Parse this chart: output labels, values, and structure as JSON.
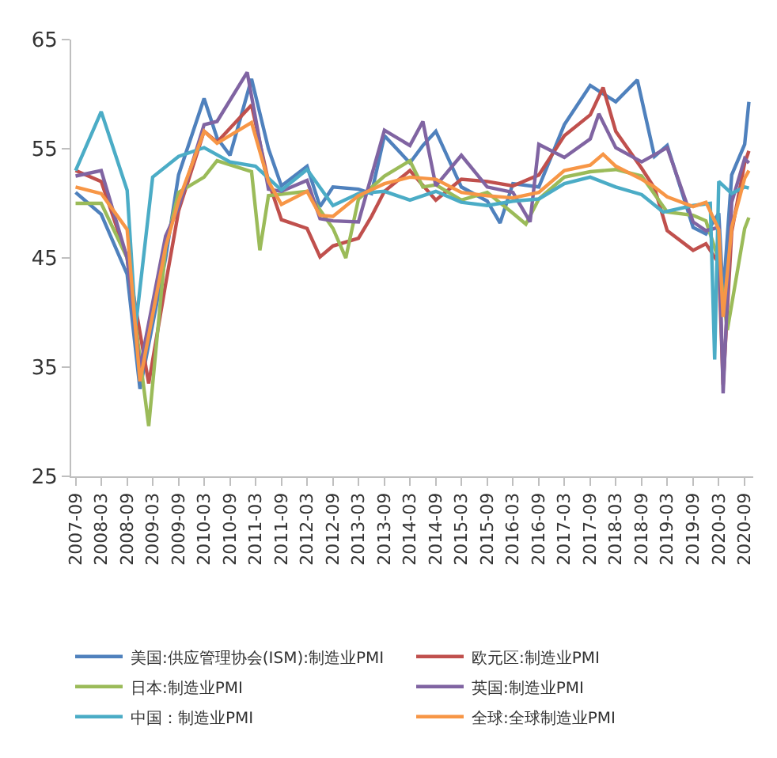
{
  "chart_data": {
    "type": "line",
    "ylim": [
      25,
      65
    ],
    "yticks": [
      25,
      35,
      45,
      55,
      65
    ],
    "xlim": [
      "2007-08",
      "2020-11"
    ],
    "xticks": [
      "2007-09",
      "2008-03",
      "2008-09",
      "2009-03",
      "2009-09",
      "2010-03",
      "2010-09",
      "2011-03",
      "2011-09",
      "2012-03",
      "2012-09",
      "2013-03",
      "2013-09",
      "2014-03",
      "2014-09",
      "2015-03",
      "2015-09",
      "2016-03",
      "2016-09",
      "2017-03",
      "2017-09",
      "2018-03",
      "2018-09",
      "2019-03",
      "2019-09",
      "2020-03",
      "2020-09"
    ],
    "grid": false,
    "legend": "bottom",
    "marker": "none",
    "line_style": "solid",
    "series": [
      {
        "name": "美国:供应管理协会(ISM):制造业PMI",
        "color": "#4f81bd",
        "x": [
          "2007-09",
          "2008-03",
          "2008-09",
          "2008-12",
          "2009-06",
          "2009-09",
          "2010-03",
          "2010-06",
          "2010-09",
          "2011-02",
          "2011-06",
          "2011-09",
          "2012-03",
          "2012-06",
          "2012-09",
          "2013-03",
          "2013-06",
          "2013-09",
          "2014-03",
          "2014-06",
          "2014-09",
          "2015-03",
          "2015-09",
          "2015-12",
          "2016-03",
          "2016-09",
          "2017-03",
          "2017-09",
          "2018-03",
          "2018-08",
          "2018-12",
          "2019-03",
          "2019-09",
          "2019-12",
          "2020-03",
          "2020-04",
          "2020-06",
          "2020-09",
          "2020-10"
        ],
        "values": [
          51,
          49,
          43.5,
          33,
          45,
          52.6,
          59.6,
          56,
          54.4,
          61.4,
          55,
          51.6,
          53.4,
          49.7,
          51.5,
          51.3,
          50.9,
          56.2,
          53.7,
          55.3,
          56.6,
          51.5,
          50.2,
          48.2,
          51.8,
          51.5,
          57.2,
          60.8,
          59.3,
          61.3,
          54.3,
          55.3,
          47.8,
          47.2,
          49.1,
          41.5,
          52.6,
          55.4,
          59.3
        ]
      },
      {
        "name": "欧元区:制造业PMI",
        "color": "#c0504d",
        "x": [
          "2007-09",
          "2008-03",
          "2008-09",
          "2009-02",
          "2009-06",
          "2009-09",
          "2010-03",
          "2010-06",
          "2011-02",
          "2011-06",
          "2011-09",
          "2012-03",
          "2012-06",
          "2012-09",
          "2013-03",
          "2013-06",
          "2013-09",
          "2014-03",
          "2014-09",
          "2015-03",
          "2015-09",
          "2016-03",
          "2016-09",
          "2017-03",
          "2017-09",
          "2017-12",
          "2018-03",
          "2018-09",
          "2018-12",
          "2019-03",
          "2019-09",
          "2019-12",
          "2020-03",
          "2020-04",
          "2020-06",
          "2020-09",
          "2020-10"
        ],
        "values": [
          53,
          52,
          45,
          33.5,
          42.6,
          49.3,
          56.6,
          55.6,
          59,
          52,
          48.5,
          47.7,
          45.1,
          46.1,
          46.8,
          48.8,
          51.1,
          53,
          50.3,
          52.2,
          52,
          51.6,
          52.6,
          56.2,
          58.1,
          60.6,
          56.6,
          53.2,
          51.4,
          47.5,
          45.7,
          46.3,
          44.5,
          33.4,
          47.4,
          53.7,
          54.8
        ]
      },
      {
        "name": "日本:制造业PMI",
        "color": "#9bbb59",
        "x": [
          "2007-09",
          "2008-03",
          "2008-09",
          "2009-02",
          "2009-06",
          "2009-09",
          "2010-03",
          "2010-06",
          "2011-02",
          "2011-04",
          "2011-06",
          "2012-03",
          "2012-09",
          "2012-12",
          "2013-03",
          "2013-09",
          "2014-03",
          "2014-06",
          "2014-09",
          "2015-03",
          "2015-09",
          "2016-03",
          "2016-06",
          "2016-09",
          "2017-03",
          "2017-09",
          "2018-03",
          "2018-09",
          "2019-03",
          "2019-09",
          "2019-12",
          "2020-03",
          "2020-05",
          "2020-09",
          "2020-10"
        ],
        "values": [
          50,
          50,
          45,
          29.6,
          46,
          51,
          52.4,
          53.9,
          52.9,
          45.7,
          50.7,
          51.1,
          47.7,
          45,
          50.4,
          52.5,
          53.9,
          51.5,
          51.7,
          50.3,
          51,
          49.1,
          48.1,
          50.4,
          52.4,
          52.9,
          53.1,
          52.5,
          49.2,
          48.9,
          48.4,
          44.8,
          38.4,
          47.7,
          48.7
        ]
      },
      {
        "name": "英国:制造业PMI",
        "color": "#8064a2",
        "x": [
          "2007-09",
          "2008-03",
          "2008-09",
          "2008-12",
          "2009-06",
          "2009-09",
          "2010-03",
          "2010-06",
          "2011-01",
          "2011-06",
          "2011-09",
          "2012-03",
          "2012-06",
          "2012-09",
          "2013-03",
          "2013-06",
          "2013-09",
          "2014-03",
          "2014-06",
          "2014-09",
          "2015-03",
          "2015-09",
          "2016-03",
          "2016-07",
          "2016-09",
          "2017-03",
          "2017-09",
          "2017-11",
          "2018-03",
          "2018-09",
          "2019-03",
          "2019-09",
          "2019-12",
          "2020-03",
          "2020-04",
          "2020-06",
          "2020-09",
          "2020-10"
        ],
        "values": [
          52.5,
          53,
          45,
          34.9,
          47,
          49.6,
          57.2,
          57.5,
          62,
          51.3,
          51.1,
          52.1,
          48.6,
          48.4,
          48.3,
          52.5,
          56.7,
          55.3,
          57.5,
          51.6,
          54.4,
          51.5,
          51,
          48.3,
          55.4,
          54.2,
          55.9,
          58.2,
          55.1,
          53.8,
          55.1,
          48.3,
          47.5,
          47.8,
          32.6,
          50.1,
          54.1,
          53.7
        ]
      },
      {
        "name": "中国：制造业PMI",
        "color": "#4bacc6",
        "x": [
          "2007-09",
          "2008-03",
          "2008-09",
          "2008-11",
          "2009-03",
          "2009-09",
          "2010-03",
          "2010-09",
          "2011-03",
          "2011-09",
          "2012-03",
          "2012-09",
          "2013-03",
          "2013-09",
          "2014-03",
          "2014-09",
          "2015-03",
          "2015-09",
          "2016-03",
          "2016-09",
          "2017-03",
          "2017-09",
          "2018-03",
          "2018-09",
          "2019-02",
          "2019-09",
          "2020-01",
          "2020-02",
          "2020-03",
          "2020-06",
          "2020-09",
          "2020-10"
        ],
        "values": [
          53,
          58.4,
          51.2,
          38.8,
          52.4,
          54.3,
          55.1,
          53.8,
          53.4,
          51.2,
          53.1,
          49.8,
          50.9,
          51.1,
          50.3,
          51.1,
          50.1,
          49.8,
          50.2,
          50.4,
          51.8,
          52.4,
          51.5,
          50.8,
          49.2,
          49.8,
          50,
          35.7,
          52,
          50.9,
          51.5,
          51.4
        ]
      },
      {
        "name": "全球:全球制造业PMI",
        "color": "#f79646",
        "x": [
          "2007-09",
          "2008-03",
          "2008-09",
          "2008-12",
          "2009-06",
          "2009-09",
          "2010-03",
          "2010-06",
          "2011-02",
          "2011-06",
          "2011-09",
          "2012-03",
          "2012-06",
          "2012-09",
          "2013-03",
          "2013-09",
          "2014-03",
          "2014-09",
          "2015-03",
          "2015-09",
          "2016-03",
          "2016-09",
          "2017-03",
          "2017-09",
          "2017-12",
          "2018-03",
          "2018-09",
          "2018-12",
          "2019-03",
          "2019-09",
          "2019-12",
          "2020-03",
          "2020-04",
          "2020-06",
          "2020-09",
          "2020-10"
        ],
        "values": [
          51.5,
          50.9,
          47.6,
          33.7,
          46,
          50.2,
          56.6,
          55.5,
          57.4,
          52,
          49.9,
          51.1,
          48.9,
          48.8,
          50.7,
          51.8,
          52.4,
          52.2,
          51,
          50.7,
          50.5,
          51,
          53,
          53.5,
          54.5,
          53.4,
          52.2,
          51.5,
          50.6,
          49.7,
          50.1,
          47.6,
          39.6,
          47.8,
          52.3,
          53
        ]
      }
    ]
  }
}
